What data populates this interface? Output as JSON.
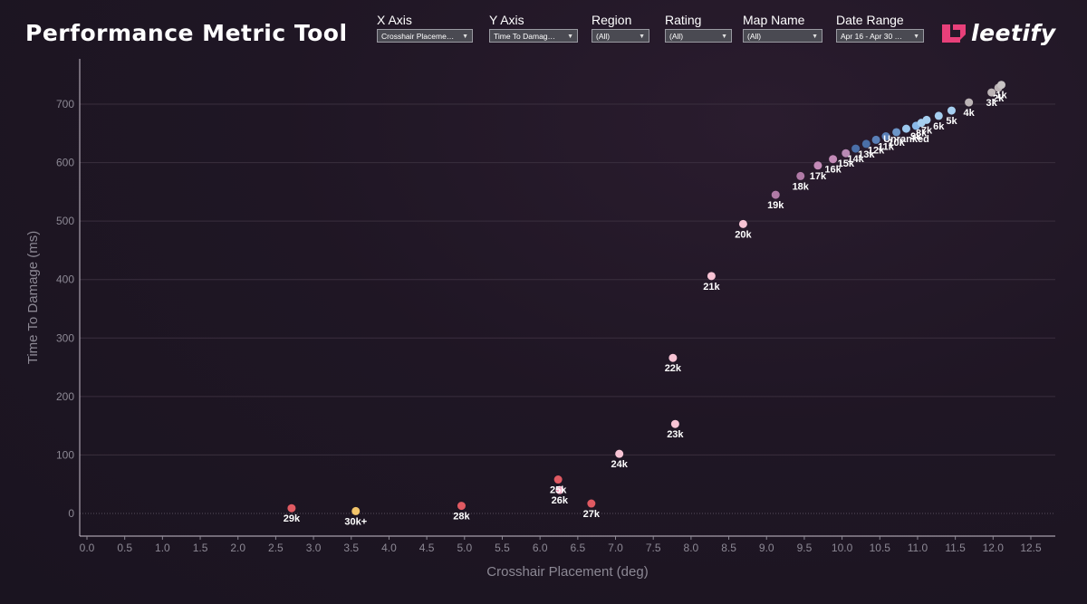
{
  "header": {
    "title": "Performance Metric Tool",
    "brand": "leetify",
    "brand_color": "#e8407a"
  },
  "filters": [
    {
      "label": "X Axis",
      "value": "Crosshair Placeme…"
    },
    {
      "label": "Y Axis",
      "value": "Time To Damag…"
    },
    {
      "label": "Region",
      "value": "(All)"
    },
    {
      "label": "Rating",
      "value": "(All)"
    },
    {
      "label": "Map Name",
      "value": "(All)"
    },
    {
      "label": "Date Range",
      "value": "Apr 16 - Apr 30 …"
    }
  ],
  "chart_data": {
    "type": "scatter",
    "title": "",
    "xlabel": "Crosshair Placement (deg)",
    "ylabel": "Time To Damage (ms)",
    "xlim": [
      0.0,
      12.8
    ],
    "ylim": [
      -45,
      760
    ],
    "xticks": [
      "0.0",
      "0.5",
      "1.0",
      "1.5",
      "2.0",
      "2.5",
      "3.0",
      "3.5",
      "4.0",
      "4.5",
      "5.0",
      "5.5",
      "6.0",
      "6.5",
      "7.0",
      "7.5",
      "8.0",
      "8.5",
      "9.0",
      "9.5",
      "10.0",
      "10.5",
      "11.0",
      "11.5",
      "12.0",
      "12.5"
    ],
    "yticks": [
      "0",
      "100",
      "200",
      "300",
      "400",
      "500",
      "600",
      "700"
    ],
    "points": [
      {
        "label": "29k",
        "x": 2.71,
        "y": 9,
        "color": "#e05a62"
      },
      {
        "label": "30k+",
        "x": 3.56,
        "y": 4,
        "color": "#f2c46a"
      },
      {
        "label": "28k",
        "x": 4.96,
        "y": 13,
        "color": "#e05a62"
      },
      {
        "label": "25k",
        "x": 6.24,
        "y": 58,
        "color": "#e05a62"
      },
      {
        "label": "26k",
        "x": 6.26,
        "y": 40,
        "color": "#f2a6c0"
      },
      {
        "label": "27k",
        "x": 6.68,
        "y": 17,
        "color": "#e05a62"
      },
      {
        "label": "24k",
        "x": 7.05,
        "y": 102,
        "color": "#f7c3d4"
      },
      {
        "label": "22k",
        "x": 7.76,
        "y": 266,
        "color": "#f7c3d4"
      },
      {
        "label": "23k",
        "x": 7.79,
        "y": 153,
        "color": "#f7c3d4"
      },
      {
        "label": "21k",
        "x": 8.27,
        "y": 406,
        "color": "#f7c3d4"
      },
      {
        "label": "20k",
        "x": 8.69,
        "y": 495,
        "color": "#f7c3d4"
      },
      {
        "label": "19k",
        "x": 9.12,
        "y": 545,
        "color": "#b07aa6"
      },
      {
        "label": "18k",
        "x": 9.45,
        "y": 577,
        "color": "#b07aa6"
      },
      {
        "label": "17k",
        "x": 9.68,
        "y": 595,
        "color": "#c48bb8"
      },
      {
        "label": "16k",
        "x": 9.88,
        "y": 606,
        "color": "#c48bb8"
      },
      {
        "label": "15k",
        "x": 10.05,
        "y": 616,
        "color": "#b88ab4"
      },
      {
        "label": "14k",
        "x": 10.18,
        "y": 624,
        "color": "#4a6fa8"
      },
      {
        "label": "13k",
        "x": 10.32,
        "y": 632,
        "color": "#4a6fa8"
      },
      {
        "label": "12k",
        "x": 10.45,
        "y": 639,
        "color": "#5a80b8"
      },
      {
        "label": "11k",
        "x": 10.58,
        "y": 645,
        "color": "#5a80b8"
      },
      {
        "label": "10k",
        "x": 10.72,
        "y": 652,
        "color": "#6c96c8"
      },
      {
        "label": "Unranked",
        "x": 10.85,
        "y": 658,
        "color": "#9cc8ee"
      },
      {
        "label": "9k",
        "x": 10.98,
        "y": 663,
        "color": "#8ab8e8"
      },
      {
        "label": "8k",
        "x": 11.05,
        "y": 668,
        "color": "#a6cff0"
      },
      {
        "label": "7k",
        "x": 11.12,
        "y": 673,
        "color": "#a6cff0"
      },
      {
        "label": "6k",
        "x": 11.28,
        "y": 680,
        "color": "#a6cff0"
      },
      {
        "label": "5k",
        "x": 11.45,
        "y": 689,
        "color": "#a6cff0"
      },
      {
        "label": "4k",
        "x": 11.68,
        "y": 703,
        "color": "#bcb4b6"
      },
      {
        "label": "3k",
        "x": 11.98,
        "y": 720,
        "color": "#bcb4b6"
      },
      {
        "label": "2k",
        "x": 12.07,
        "y": 728,
        "color": "#bcb4b6"
      },
      {
        "label": "1k",
        "x": 12.11,
        "y": 733,
        "color": "#c8c4c4"
      }
    ]
  }
}
